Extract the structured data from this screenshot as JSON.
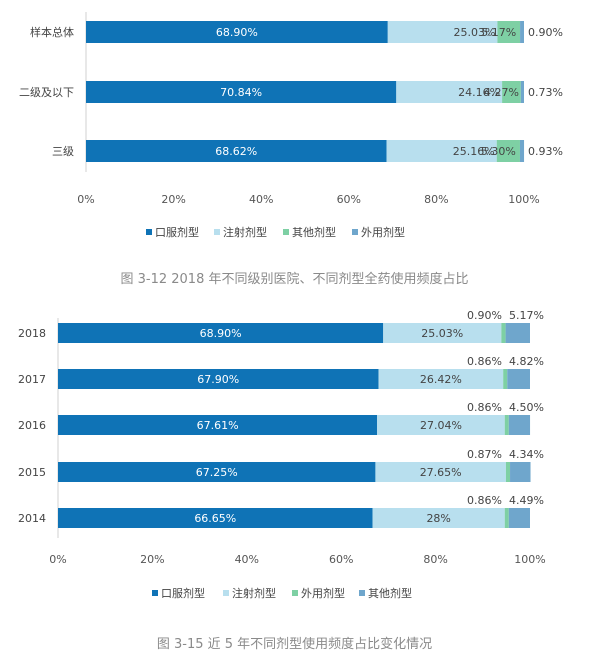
{
  "chart_data": [
    {
      "type": "bar",
      "orientation": "horizontal",
      "stacked": true,
      "categories": [
        "样本总体",
        "二级及以下",
        "三级"
      ],
      "series": [
        {
          "name": "口服剂型",
          "values": [
            68.9,
            70.84,
            68.62
          ],
          "labels": [
            "68.90%",
            "70.84%",
            "68.62%"
          ]
        },
        {
          "name": "注射剂型",
          "values": [
            25.03,
            24.16,
            25.16
          ],
          "labels": [
            "25.03%",
            "24.16%",
            "25.16%"
          ]
        },
        {
          "name": "其他剂型",
          "values": [
            5.17,
            4.27,
            5.3
          ],
          "labels": [
            "5.17%",
            "4.27%",
            "5.30%"
          ]
        },
        {
          "name": "外用剂型",
          "values": [
            0.9,
            0.73,
            0.93
          ],
          "labels": [
            "0.90%",
            "0.73%",
            "0.93%"
          ]
        }
      ],
      "xlim": [
        0,
        100
      ],
      "x_ticks": [
        "0%",
        "20%",
        "40%",
        "60%",
        "80%",
        "100%"
      ],
      "legend_position": "bottom",
      "caption": "图 3-12 2018 年不同级别医院、不同剂型全药使用频度占比"
    },
    {
      "type": "bar",
      "orientation": "horizontal",
      "stacked": true,
      "categories": [
        "2018",
        "2017",
        "2016",
        "2015",
        "2014"
      ],
      "series": [
        {
          "name": "口服剂型",
          "values": [
            68.9,
            67.9,
            67.61,
            67.25,
            66.65
          ],
          "labels": [
            "68.90%",
            "67.90%",
            "67.61%",
            "67.25%",
            "66.65%"
          ]
        },
        {
          "name": "注射剂型",
          "values": [
            25.03,
            26.42,
            27.04,
            27.65,
            28
          ],
          "labels": [
            "25.03%",
            "26.42%",
            "27.04%",
            "27.65%",
            "28%"
          ]
        },
        {
          "name": "外用剂型",
          "values": [
            0.9,
            0.86,
            0.86,
            0.87,
            0.86
          ],
          "labels": [
            "0.90%",
            "0.86%",
            "0.86%",
            "0.87%",
            "0.86%"
          ]
        },
        {
          "name": "其他剂型",
          "values": [
            5.17,
            4.82,
            4.5,
            4.34,
            4.49
          ],
          "labels": [
            "5.17%",
            "4.82%",
            "4.50%",
            "4.34%",
            "4.49%"
          ]
        }
      ],
      "xlim": [
        0,
        100
      ],
      "x_ticks": [
        "0%",
        "20%",
        "40%",
        "60%",
        "80%",
        "100%"
      ],
      "legend_position": "bottom",
      "caption": "图 3-15  近 5 年不同剂型使用频度占比变化情况"
    }
  ],
  "colors": {
    "口服剂型": "#0f73b6",
    "注射剂型": "#b8dfee",
    "其他剂型_chart1": "#7ed0a4",
    "外用剂型_chart1": "#6fa6cc",
    "外用剂型_chart2": "#7ed0a4",
    "其他剂型_chart2": "#6fa6cc"
  }
}
